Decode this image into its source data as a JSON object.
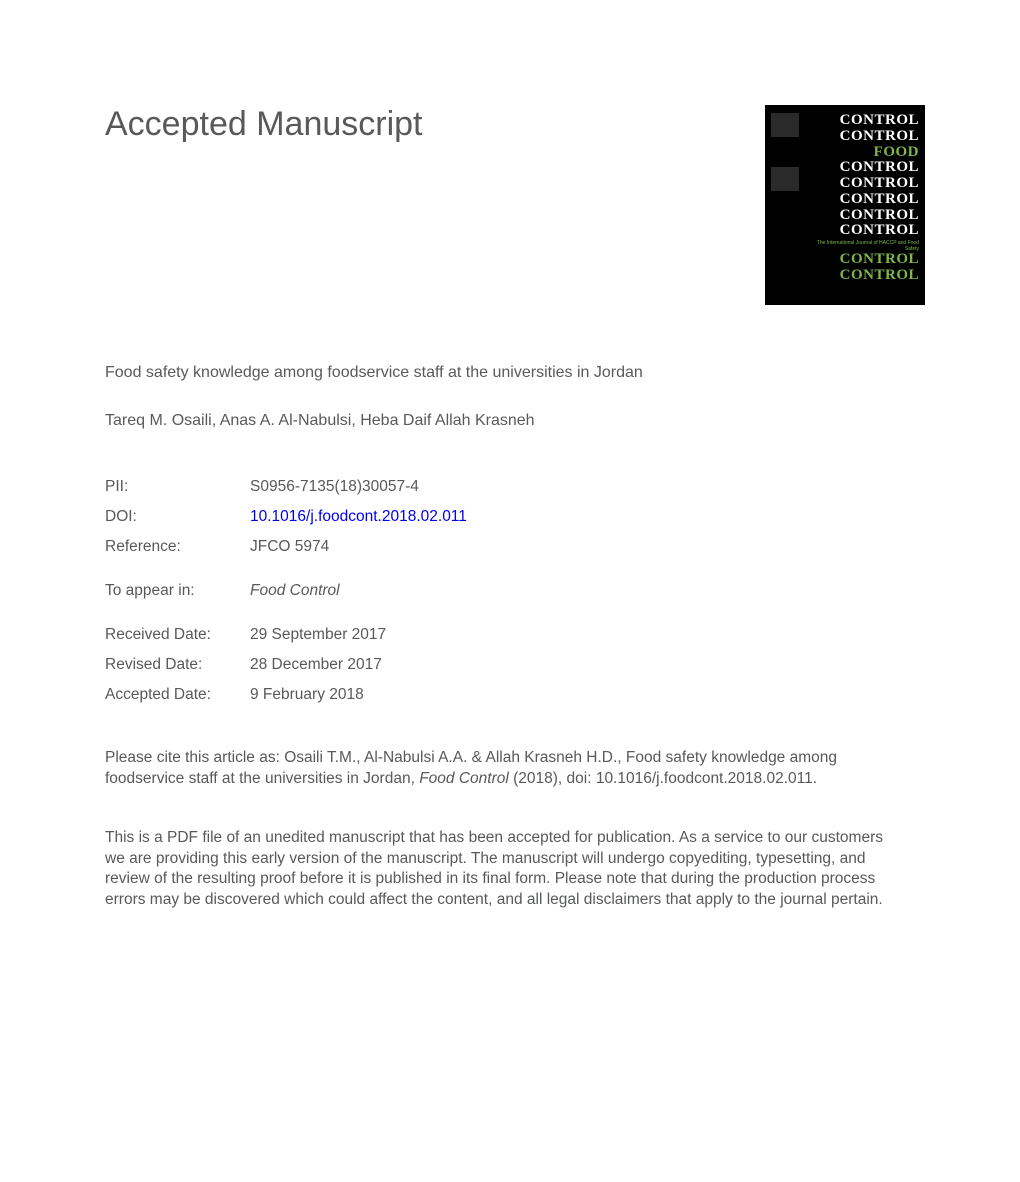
{
  "heading": "Accepted Manuscript",
  "article_title": "Food safety knowledge among foodservice staff at the universities in Jordan",
  "authors": "Tareq M. Osaili, Anas A. Al-Nabulsi, Heba Daif Allah Krasneh",
  "meta": {
    "pii_label": "PII:",
    "pii_value": "S0956-7135(18)30057-4",
    "doi_label": "DOI:",
    "doi_value": "10.1016/j.foodcont.2018.02.011",
    "reference_label": "Reference:",
    "reference_value": "JFCO 5974",
    "appear_label": "To appear in:",
    "appear_value": "Food Control",
    "received_label": "Received Date:",
    "received_value": "29 September 2017",
    "revised_label": "Revised Date:",
    "revised_value": "28 December 2017",
    "accepted_label": "Accepted Date:",
    "accepted_value": "9 February 2018"
  },
  "citation": {
    "prefix": "Please cite this article as: Osaili T.M., Al-Nabulsi A.A. & Allah Krasneh H.D., Food safety knowledge among foodservice staff at the universities in Jordan, ",
    "journal": "Food Control",
    "suffix": " (2018), doi: 10.1016/j.foodcont.2018.02.011."
  },
  "disclaimer": "This is a PDF file of an unedited manuscript that has been accepted for publication. As a service to our customers we are providing this early version of the manuscript. The manuscript will undergo copyediting, typesetting, and review of the resulting proof before it is published in its final form. Please note that during the production process errors may be discovered which could affect the content, and all legal disclaimers that apply to the journal pertain.",
  "cover": {
    "lines": [
      "CONTROL",
      "CONTROL",
      "FOOD CONTROL",
      "CONTROL",
      "CONTROL",
      "CONTROL",
      "CONTROL",
      "CONTROL",
      "CONTROL"
    ],
    "food_word": "FOOD",
    "subtitle": "The International Journal of HACCP and Food Safety",
    "colors": {
      "bg": "#000000",
      "white": "#ffffff",
      "green": "#7fb848"
    }
  },
  "styling": {
    "page_bg": "#ffffff",
    "text_color": "#58595b",
    "link_color": "#0000ee",
    "heading_fontsize": 34,
    "body_fontsize": 15.5,
    "title_fontsize": 16
  }
}
